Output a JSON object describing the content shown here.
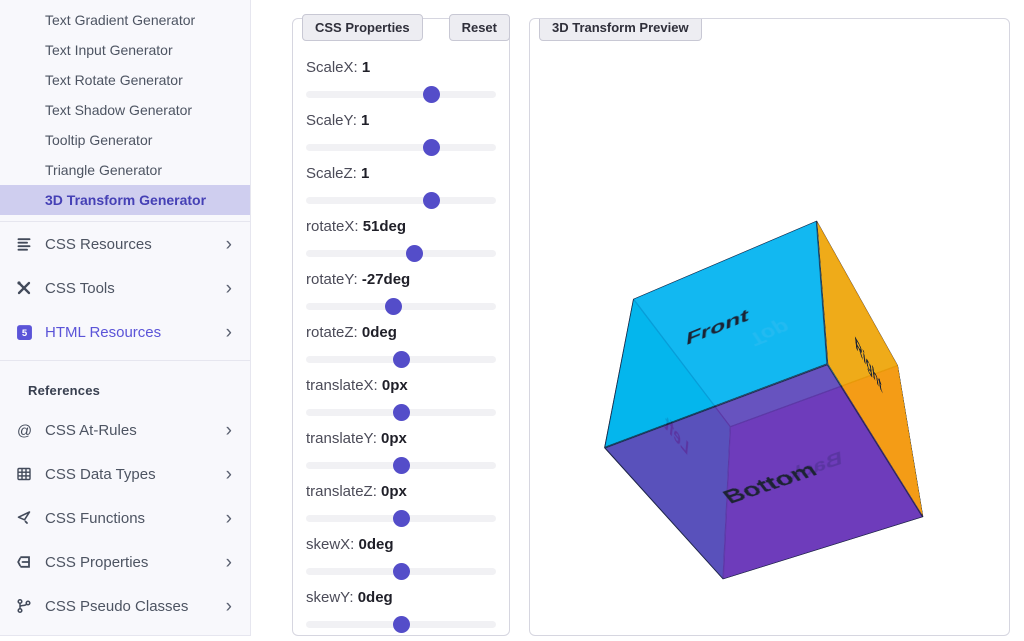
{
  "sidebar": {
    "generators": [
      {
        "label": "Text Gradient Generator",
        "active": false
      },
      {
        "label": "Text Input Generator",
        "active": false
      },
      {
        "label": "Text Rotate Generator",
        "active": false
      },
      {
        "label": "Text Shadow Generator",
        "active": false
      },
      {
        "label": "Tooltip Generator",
        "active": false
      },
      {
        "label": "Triangle Generator",
        "active": false
      },
      {
        "label": "3D Transform Generator",
        "active": true
      }
    ],
    "sections": [
      {
        "label": "CSS Resources",
        "icon": "lines-icon",
        "purple": false
      },
      {
        "label": "CSS Tools",
        "icon": "tools-icon",
        "purple": false
      },
      {
        "label": "HTML Resources",
        "icon": "html5-icon",
        "purple": true
      }
    ],
    "references_title": "References",
    "references": [
      {
        "label": "CSS At-Rules",
        "icon": "at-icon"
      },
      {
        "label": "CSS Data Types",
        "icon": "table-icon"
      },
      {
        "label": "CSS Functions",
        "icon": "function-icon"
      },
      {
        "label": "CSS Properties",
        "icon": "css3-icon"
      },
      {
        "label": "CSS Pseudo Classes",
        "icon": "branch-icon"
      }
    ],
    "chevron": "›"
  },
  "properties_panel": {
    "title": "CSS Properties",
    "reset_label": "Reset",
    "sliders": [
      {
        "label": "ScaleX:",
        "value": "1",
        "percent": 66
      },
      {
        "label": "ScaleY:",
        "value": "1",
        "percent": 66
      },
      {
        "label": "ScaleZ:",
        "value": "1",
        "percent": 66
      },
      {
        "label": "rotateX:",
        "value": "51deg",
        "percent": 57
      },
      {
        "label": "rotateY:",
        "value": "-27deg",
        "percent": 46
      },
      {
        "label": "rotateZ:",
        "value": "0deg",
        "percent": 50
      },
      {
        "label": "translateX:",
        "value": "0px",
        "percent": 50
      },
      {
        "label": "translateY:",
        "value": "0px",
        "percent": 50
      },
      {
        "label": "translateZ:",
        "value": "0px",
        "percent": 50
      },
      {
        "label": "skewX:",
        "value": "0deg",
        "percent": 50
      },
      {
        "label": "skewY:",
        "value": "0deg",
        "percent": 50
      }
    ]
  },
  "preview_panel": {
    "title": "3D Transform Preview",
    "cube": {
      "transform": "scaleX(1) scaleY(1) scaleZ(1) rotateX(51deg) rotateY(-27deg) rotateZ(0deg) translateX(0px) translateY(0px) translateZ(0px) skewX(0deg) skewY(0deg)",
      "faces": [
        {
          "name": "front",
          "label": "Front",
          "color": "rgba(0,174,239,0.85)"
        },
        {
          "name": "back",
          "label": "Back",
          "color": "rgba(140,35,215,0.78)"
        },
        {
          "name": "right",
          "label": "Right",
          "color": "rgba(252,163,0,0.9)"
        },
        {
          "name": "left",
          "label": "Left",
          "color": "rgba(0,222,226,0.9)"
        },
        {
          "name": "top",
          "label": "Top",
          "color": "rgba(0,225,250,0.55)"
        },
        {
          "name": "bottom",
          "label": "Bottom",
          "color": "rgba(100,55,180,0.85)"
        }
      ]
    }
  },
  "colors": {
    "accent": "#544dc9",
    "active_item_bg": "#cfceef",
    "active_item_text": "#4540b5",
    "link_purple": "#5b54d8",
    "slider_track": "#f1f1f4"
  }
}
